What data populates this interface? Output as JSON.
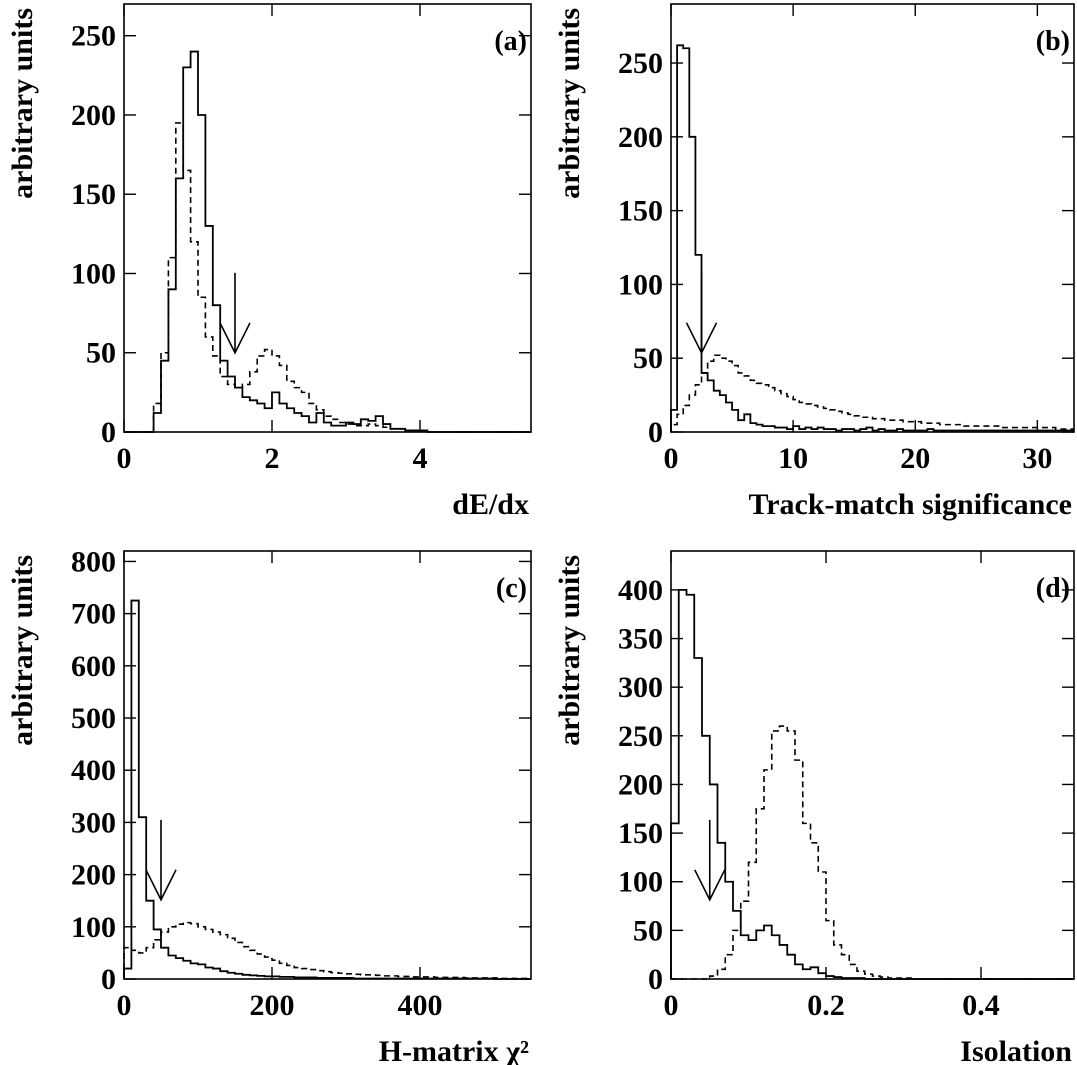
{
  "chart_data": [
    {
      "type": "histogram",
      "panel_label": "(a)",
      "xlabel": "dE/dx",
      "ylabel": "arbitrary units",
      "xlim": [
        0,
        5.5
      ],
      "ylim": [
        0,
        270
      ],
      "xticks": [
        0,
        2,
        4
      ],
      "yticks": [
        0,
        50,
        100,
        150,
        200,
        250
      ],
      "xtick_labels": [
        "0",
        "2",
        "4"
      ],
      "ytick_labels": [
        "0",
        "50",
        "100",
        "150",
        "200",
        "250"
      ],
      "bin_width": 0.1,
      "series": [
        {
          "style": "solid",
          "values": [
            0,
            0,
            0,
            0,
            12,
            45,
            90,
            160,
            230,
            240,
            200,
            130,
            80,
            45,
            35,
            28,
            22,
            20,
            18,
            15,
            25,
            18,
            15,
            12,
            10,
            6,
            12,
            6,
            4,
            4,
            6,
            5,
            8,
            7,
            10,
            5,
            2,
            2,
            1,
            1,
            1,
            0,
            0,
            0,
            0,
            0,
            0,
            0,
            0,
            0,
            0,
            0,
            0,
            0,
            0
          ]
        },
        {
          "style": "dashed",
          "values": [
            0,
            0,
            0,
            0,
            18,
            50,
            110,
            195,
            165,
            120,
            85,
            60,
            48,
            35,
            30,
            28,
            30,
            38,
            48,
            52,
            48,
            42,
            32,
            28,
            25,
            18,
            14,
            10,
            8,
            6,
            5,
            4,
            4,
            5,
            4,
            3,
            2,
            2,
            1,
            1,
            1,
            0,
            0,
            0,
            0,
            0,
            0,
            0,
            0,
            0,
            0,
            0,
            0,
            0,
            0
          ]
        }
      ],
      "cut_arrow_x": 1.5
    },
    {
      "type": "histogram",
      "panel_label": "(b)",
      "xlabel": "Track-match significance",
      "ylabel": "arbitrary units",
      "xlim": [
        0,
        33
      ],
      "ylim": [
        0,
        290
      ],
      "xticks": [
        0,
        10,
        20,
        30
      ],
      "yticks": [
        0,
        50,
        100,
        150,
        200,
        250
      ],
      "xtick_labels": [
        "0",
        "10",
        "20",
        "30"
      ],
      "ytick_labels": [
        "0",
        "50",
        "100",
        "150",
        "200",
        "250"
      ],
      "bin_width": 0.5,
      "series": [
        {
          "style": "solid",
          "values": [
            15,
            262,
            260,
            200,
            120,
            40,
            35,
            28,
            25,
            20,
            15,
            8,
            12,
            6,
            5,
            4,
            4,
            3,
            3,
            2,
            4,
            2,
            3,
            2,
            3,
            2,
            2,
            1,
            2,
            2,
            1,
            2,
            3,
            1,
            2,
            1,
            1,
            2,
            1,
            1,
            1,
            1,
            2,
            1,
            1,
            1,
            1,
            1,
            1,
            1,
            1,
            1,
            1,
            1,
            1,
            1,
            1,
            1,
            1,
            1,
            1,
            1,
            1,
            1,
            1,
            1
          ]
        },
        {
          "style": "dashed",
          "values": [
            5,
            12,
            18,
            25,
            32,
            40,
            48,
            52,
            50,
            48,
            45,
            40,
            38,
            35,
            33,
            32,
            30,
            28,
            26,
            24,
            22,
            20,
            19,
            18,
            17,
            16,
            15,
            14,
            13,
            12,
            11,
            10,
            10,
            9,
            9,
            8,
            8,
            8,
            7,
            7,
            7,
            6,
            6,
            6,
            5,
            5,
            5,
            5,
            4,
            4,
            4,
            4,
            4,
            4,
            3,
            3,
            3,
            3,
            3,
            3,
            3,
            3,
            3,
            2,
            2,
            2
          ]
        }
      ],
      "cut_arrow_x": 2.5
    },
    {
      "type": "histogram",
      "panel_label": "(c)",
      "xlabel": "H-matrix χ²",
      "ylabel": "arbitrary units",
      "xlim": [
        0,
        550
      ],
      "ylim": [
        0,
        820
      ],
      "xticks": [
        0,
        200,
        400
      ],
      "yticks": [
        0,
        100,
        200,
        300,
        400,
        500,
        600,
        700,
        800
      ],
      "xtick_labels": [
        "0",
        "200",
        "400"
      ],
      "ytick_labels": [
        "0",
        "100",
        "200",
        "300",
        "400",
        "500",
        "600",
        "700",
        "800"
      ],
      "bin_width": 10,
      "series": [
        {
          "style": "solid",
          "values": [
            20,
            725,
            310,
            150,
            95,
            60,
            45,
            40,
            35,
            30,
            28,
            22,
            20,
            15,
            12,
            10,
            8,
            7,
            6,
            5,
            5,
            4,
            4,
            3,
            3,
            3,
            2,
            2,
            2,
            2,
            2,
            1,
            1,
            1,
            1,
            1,
            1,
            1,
            1,
            1,
            1,
            1,
            1,
            1,
            1,
            1,
            1,
            1,
            1,
            1,
            0,
            0,
            0,
            0,
            0
          ]
        },
        {
          "style": "dashed",
          "values": [
            60,
            55,
            50,
            60,
            75,
            90,
            100,
            105,
            108,
            106,
            100,
            95,
            90,
            85,
            78,
            70,
            62,
            55,
            48,
            42,
            36,
            30,
            26,
            22,
            20,
            18,
            16,
            14,
            12,
            11,
            10,
            9,
            8,
            8,
            7,
            6,
            6,
            5,
            5,
            4,
            4,
            4,
            3,
            3,
            3,
            3,
            2,
            2,
            2,
            2,
            2,
            1,
            1,
            1,
            1
          ]
        }
      ],
      "cut_arrow_x": 50
    },
    {
      "type": "histogram",
      "panel_label": "(d)",
      "xlabel": "Isolation",
      "ylabel": "arbitrary units",
      "xlim": [
        0,
        0.52
      ],
      "ylim": [
        0,
        440
      ],
      "xticks": [
        0,
        0.2,
        0.4
      ],
      "yticks": [
        0,
        50,
        100,
        150,
        200,
        250,
        300,
        350,
        400
      ],
      "xtick_labels": [
        "0",
        "0.2",
        "0.4"
      ],
      "ytick_labels": [
        "0",
        "50",
        "100",
        "150",
        "200",
        "250",
        "300",
        "350",
        "400"
      ],
      "bin_width": 0.01,
      "series": [
        {
          "style": "solid",
          "values": [
            160,
            400,
            395,
            330,
            250,
            200,
            140,
            100,
            70,
            45,
            40,
            50,
            55,
            45,
            35,
            25,
            15,
            10,
            12,
            6,
            3,
            2,
            1,
            1,
            1,
            0,
            0,
            0,
            0,
            0,
            0,
            0,
            0,
            0,
            0,
            0,
            0,
            0,
            0,
            0,
            0,
            0,
            0,
            0,
            0,
            0,
            0,
            0,
            0,
            0,
            0,
            0
          ]
        },
        {
          "style": "dashed",
          "values": [
            0,
            0,
            0,
            0,
            0,
            3,
            10,
            25,
            50,
            80,
            120,
            175,
            215,
            255,
            260,
            255,
            225,
            160,
            140,
            110,
            60,
            35,
            25,
            15,
            8,
            5,
            3,
            2,
            1,
            1,
            1,
            0,
            0,
            0,
            0,
            0,
            0,
            0,
            0,
            0,
            0,
            0,
            0,
            0,
            0,
            0,
            0,
            0,
            0,
            0,
            0,
            0
          ]
        }
      ],
      "cut_arrow_x": 0.05
    }
  ]
}
